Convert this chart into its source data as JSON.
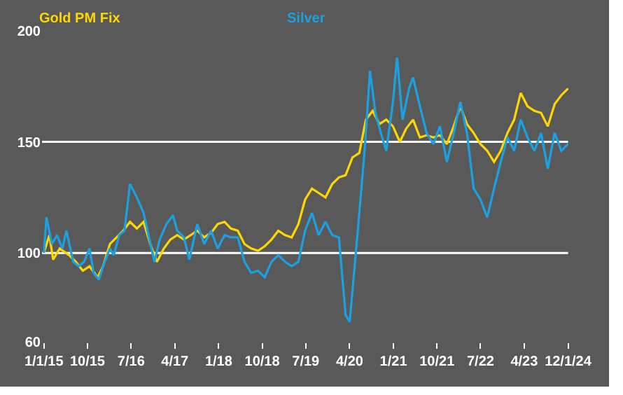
{
  "chart_data": {
    "type": "line",
    "ylim": [
      60,
      200
    ],
    "yticks": [
      60,
      100,
      150,
      200
    ],
    "xlim": [
      "2014-12-20",
      "2024-01-12"
    ],
    "xticks": [
      {
        "value": "2015-01-01",
        "label": "1/1/15"
      },
      {
        "value": "2015-10-01",
        "label": "10/15"
      },
      {
        "value": "2016-07-01",
        "label": "7/16"
      },
      {
        "value": "2017-04-01",
        "label": "4/17"
      },
      {
        "value": "2018-01-01",
        "label": "1/18"
      },
      {
        "value": "2018-10-01",
        "label": "10/18"
      },
      {
        "value": "2019-07-01",
        "label": "7/19"
      },
      {
        "value": "2020-04-01",
        "label": "4/20"
      },
      {
        "value": "2021-01-01",
        "label": "1/21"
      },
      {
        "value": "2021-10-01",
        "label": "10/21"
      },
      {
        "value": "2022-07-01",
        "label": "7/22"
      },
      {
        "value": "2023-04-01",
        "label": "4/23"
      },
      {
        "value": "2024-01-01",
        "label": "12/1/24"
      }
    ],
    "grid": false,
    "ref_lines": [
      {
        "axis": "y",
        "value": 100,
        "color": "#ffffff"
      },
      {
        "axis": "y",
        "value": 150,
        "color": "#ffffff"
      }
    ],
    "series": [
      {
        "name": "Gold PM Fix",
        "color": "#ffd700",
        "x": [
          "2015-01-01",
          "2015-02-04",
          "2015-02-28",
          "2015-04-10",
          "2015-06-08",
          "2015-07-20",
          "2015-09-02",
          "2015-10-14",
          "2015-12-04",
          "2016-01-07",
          "2016-02-19",
          "2016-04-01",
          "2016-05-12",
          "2016-06-24",
          "2016-08-06",
          "2016-09-17",
          "2016-10-29",
          "2016-12-10",
          "2017-01-22",
          "2017-03-04",
          "2017-04-16",
          "2017-05-28",
          "2017-07-09",
          "2017-08-20",
          "2017-10-02",
          "2017-11-14",
          "2017-12-26",
          "2018-02-07",
          "2018-03-19",
          "2018-05-01",
          "2018-06-12",
          "2018-07-24",
          "2018-09-05",
          "2018-10-17",
          "2018-11-28",
          "2019-01-10",
          "2019-02-22",
          "2019-04-04",
          "2019-05-16",
          "2019-06-27",
          "2019-08-09",
          "2019-09-20",
          "2019-11-02",
          "2019-12-14",
          "2020-01-25",
          "2020-03-07",
          "2020-04-19",
          "2020-06-01",
          "2020-07-12",
          "2020-08-24",
          "2020-10-05",
          "2020-11-17",
          "2020-12-29",
          "2021-02-10",
          "2021-03-22",
          "2021-05-04",
          "2021-06-16",
          "2021-07-28",
          "2021-09-09",
          "2021-10-20",
          "2021-12-02",
          "2022-01-14",
          "2022-02-25",
          "2022-04-07",
          "2022-05-19",
          "2022-07-01",
          "2022-08-12",
          "2022-09-24",
          "2022-11-05",
          "2022-12-17",
          "2023-01-28",
          "2023-03-10",
          "2023-04-22",
          "2023-06-04",
          "2023-07-16",
          "2023-08-27",
          "2023-10-09",
          "2023-11-20",
          "2024-01-01"
        ],
        "values": [
          100,
          108,
          97,
          102,
          99,
          96,
          92,
          94,
          89,
          94,
          104,
          107,
          110,
          114,
          111,
          114,
          104,
          96,
          102,
          106,
          108,
          106,
          108,
          110,
          107,
          109,
          113,
          114,
          111,
          110,
          104,
          102,
          101,
          103,
          106,
          110,
          108,
          107,
          113,
          124,
          129,
          127,
          125,
          131,
          134,
          135,
          143,
          145,
          160,
          164,
          158,
          160,
          157,
          150,
          156,
          160,
          152,
          153,
          152,
          153,
          149,
          157,
          166,
          158,
          154,
          149,
          146,
          141,
          146,
          154,
          160,
          172,
          166,
          164,
          163,
          157,
          167,
          171,
          174
        ]
      },
      {
        "name": "Silver",
        "color": "#1ba1e2",
        "x": [
          "2015-01-01",
          "2015-01-17",
          "2015-02-20",
          "2015-03-24",
          "2015-04-27",
          "2015-05-22",
          "2015-07-04",
          "2015-08-07",
          "2015-09-10",
          "2015-10-14",
          "2015-11-09",
          "2015-12-12",
          "2016-01-07",
          "2016-02-19",
          "2016-03-14",
          "2016-04-17",
          "2016-05-20",
          "2016-06-24",
          "2016-08-06",
          "2016-09-17",
          "2016-10-12",
          "2016-11-24",
          "2016-12-27",
          "2017-02-08",
          "2017-03-20",
          "2017-04-16",
          "2017-05-28",
          "2017-07-01",
          "2017-08-20",
          "2017-10-02",
          "2017-11-14",
          "2017-12-26",
          "2018-02-07",
          "2018-03-19",
          "2018-05-01",
          "2018-06-12",
          "2018-07-24",
          "2018-09-05",
          "2018-10-17",
          "2018-11-28",
          "2019-01-10",
          "2019-02-22",
          "2019-04-04",
          "2019-05-16",
          "2019-06-27",
          "2019-08-09",
          "2019-09-20",
          "2019-11-02",
          "2019-12-14",
          "2020-01-25",
          "2020-03-07",
          "2020-04-02",
          "2020-05-05",
          "2020-06-01",
          "2020-07-04",
          "2020-08-07",
          "2020-09-10",
          "2020-10-14",
          "2020-11-17",
          "2020-12-29",
          "2021-01-24",
          "2021-02-27",
          "2021-04-09",
          "2021-05-04",
          "2021-06-16",
          "2021-07-28",
          "2021-09-09",
          "2021-10-20",
          "2021-12-02",
          "2022-01-14",
          "2022-02-25",
          "2022-04-07",
          "2022-05-19",
          "2022-07-01",
          "2022-08-12",
          "2022-09-24",
          "2022-11-05",
          "2022-12-17",
          "2023-01-28",
          "2023-03-10",
          "2023-04-22",
          "2023-06-04",
          "2023-07-16",
          "2023-08-27",
          "2023-10-09",
          "2023-11-20",
          "2024-01-01"
        ],
        "values": [
          100,
          116,
          104,
          108,
          102,
          110,
          96,
          94,
          96,
          102,
          91,
          88,
          94,
          102,
          99,
          108,
          110,
          131,
          125,
          118,
          110,
          96,
          106,
          113,
          117,
          110,
          107,
          97,
          113,
          104,
          110,
          102,
          108,
          107,
          107,
          96,
          91,
          92,
          89,
          96,
          99,
          96,
          94,
          96,
          110,
          118,
          108,
          114,
          108,
          107,
          72,
          69,
          96,
          118,
          146,
          182,
          163,
          154,
          146,
          168,
          188,
          160,
          174,
          179,
          166,
          154,
          149,
          157,
          141,
          154,
          168,
          154,
          129,
          124,
          116,
          129,
          141,
          152,
          146,
          160,
          152,
          146,
          154,
          138,
          154,
          146,
          149
        ]
      }
    ]
  }
}
